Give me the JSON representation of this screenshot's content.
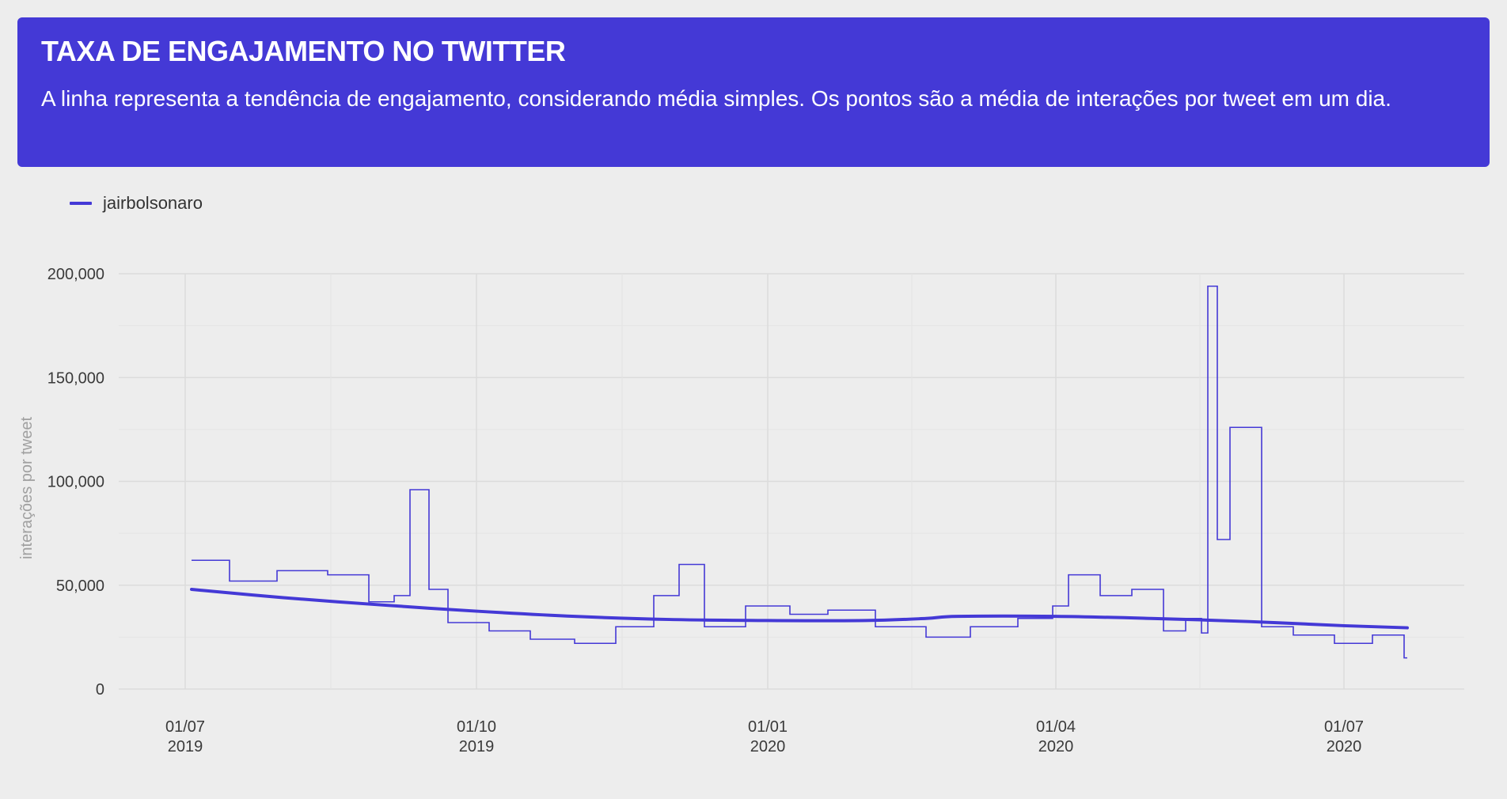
{
  "header": {
    "title": "TAXA DE ENGAJAMENTO NO TWITTER",
    "subtitle": "A linha representa a tendência de engajamento, considerando média simples. Os pontos são a média de interações por tweet em um dia."
  },
  "colors": {
    "accent": "#4439d6",
    "background": "#ededed",
    "grid": "#dcdcdc"
  },
  "chart_data": {
    "type": "line",
    "title": "TAXA DE ENGAJAMENTO NO TWITTER",
    "ylabel": "interações por tweet",
    "xlabel": "",
    "legend": "top-left",
    "grid": true,
    "ylim": [
      0,
      200000
    ],
    "xlim": [
      "2019-06-10",
      "2020-08-08"
    ],
    "y_ticks": [
      {
        "value": 0,
        "label": "0"
      },
      {
        "value": 50000,
        "label": "50,000"
      },
      {
        "value": 100000,
        "label": "100,000"
      },
      {
        "value": 150000,
        "label": "150,000"
      },
      {
        "value": 200000,
        "label": "200,000"
      }
    ],
    "x_ticks": [
      {
        "date": "2019-07-01",
        "line1": "01/07",
        "line2": "2019"
      },
      {
        "date": "2019-10-01",
        "line1": "01/10",
        "line2": "2019"
      },
      {
        "date": "2020-01-01",
        "line1": "01/01",
        "line2": "2020"
      },
      {
        "date": "2020-04-01",
        "line1": "01/04",
        "line2": "2020"
      },
      {
        "date": "2020-07-01",
        "line1": "01/07",
        "line2": "2020"
      }
    ],
    "series": [
      {
        "name": "jairbolsonaro",
        "style": "step",
        "x": [
          "2019-07-03",
          "2019-07-15",
          "2019-07-30",
          "2019-08-15",
          "2019-08-28",
          "2019-09-05",
          "2019-09-10",
          "2019-09-16",
          "2019-09-22",
          "2019-10-05",
          "2019-10-18",
          "2019-11-01",
          "2019-11-14",
          "2019-11-26",
          "2019-12-04",
          "2019-12-12",
          "2019-12-25",
          "2020-01-08",
          "2020-01-20",
          "2020-02-04",
          "2020-02-20",
          "2020-03-05",
          "2020-03-20",
          "2020-03-31",
          "2020-04-05",
          "2020-04-15",
          "2020-04-25",
          "2020-05-05",
          "2020-05-12",
          "2020-05-17",
          "2020-05-19",
          "2020-05-22",
          "2020-05-26",
          "2020-06-05",
          "2020-06-15",
          "2020-06-28",
          "2020-07-10",
          "2020-07-20"
        ],
        "y": [
          62000,
          52000,
          57000,
          55000,
          42000,
          45000,
          96000,
          48000,
          32000,
          28000,
          24000,
          22000,
          30000,
          45000,
          60000,
          30000,
          40000,
          36000,
          38000,
          30000,
          25000,
          30000,
          34000,
          40000,
          55000,
          45000,
          48000,
          28000,
          34000,
          27000,
          194000,
          72000,
          126000,
          30000,
          26000,
          22000,
          26000,
          15000
        ]
      },
      {
        "name": "tendência",
        "style": "smooth",
        "x": [
          "2019-07-03",
          "2019-08-01",
          "2019-09-01",
          "2019-10-01",
          "2019-11-01",
          "2019-12-01",
          "2020-01-01",
          "2020-02-01",
          "2020-02-20",
          "2020-03-01",
          "2020-04-01",
          "2020-05-01",
          "2020-06-01",
          "2020-07-01",
          "2020-07-21"
        ],
        "y": [
          48000,
          44000,
          40500,
          37500,
          35000,
          33500,
          33000,
          33000,
          34000,
          35000,
          35000,
          34000,
          32500,
          30500,
          29500
        ]
      }
    ]
  }
}
